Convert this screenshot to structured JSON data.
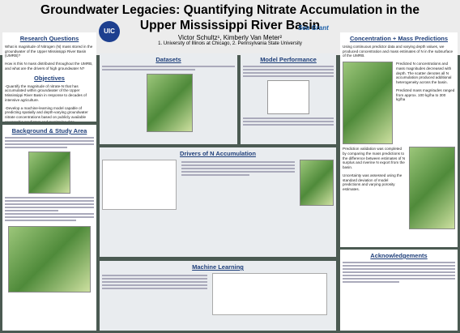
{
  "header": {
    "title": "Groundwater Legacies: Quantifying Nitrate Accumulation in the Upper Mississippi River Basin",
    "authors": "Victor Schultz¹, Kimberly Van Meter²",
    "affiliations": "1. University of Illinois at Chicago, 2. Pennsylvania State University",
    "logo_left": "UIC",
    "logo_right": "Sea Grant"
  },
  "research_questions": {
    "heading": "Research Questions",
    "items": [
      "What is magnitude of Nitrogen (N) mass stored in the groundwater of the Upper Mississippi River Basin (UMRB)?",
      "How is this N mass distributed throughout the UMRB, and what are the drivers of high groundwater N?"
    ]
  },
  "objectives": {
    "heading": "Objectives",
    "items": [
      "-Quantify the magnitude of nitrate-N that has accumulated within groundwater of the Upper Mississippi River Basin in response to decades of intensive agriculture.",
      "-Develop a machine-learning model capable of predicting spatially and depth-varying groundwater nitrate concentrations based on publicly available geographic predictors and monitoring data."
    ]
  },
  "background": {
    "heading": "Background & Study Area"
  },
  "datasets": {
    "heading": "Datasets"
  },
  "model_performance": {
    "heading": "Model Performance"
  },
  "drivers": {
    "heading": "Drivers of N Accumulation"
  },
  "machine_learning": {
    "heading": "Machine Learning"
  },
  "predictions": {
    "heading": "Concentration + Mass Predictions",
    "items": [
      "Using continuous predictor data and varying depth values, we produced concentration and mass estimates of N in the subsurface of the UMRB.",
      "Predicted N concentrations and mass magnitudes decreased with depth. The scatter denotes all N accumulation produced additional heterogeneity across the basin.",
      "Predicted mass magnitudes ranged from approx. 100 kg/ha to 300 kg/ha",
      "Prediction validation was completed by comparing the mass predictions to the difference between estimates of N surplus and riverine N export from the basin.",
      "Uncertainty was assessed using the standard deviation of model predictions and varying porosity estimates."
    ]
  },
  "acknowledgements": {
    "heading": "Acknowledgements"
  }
}
